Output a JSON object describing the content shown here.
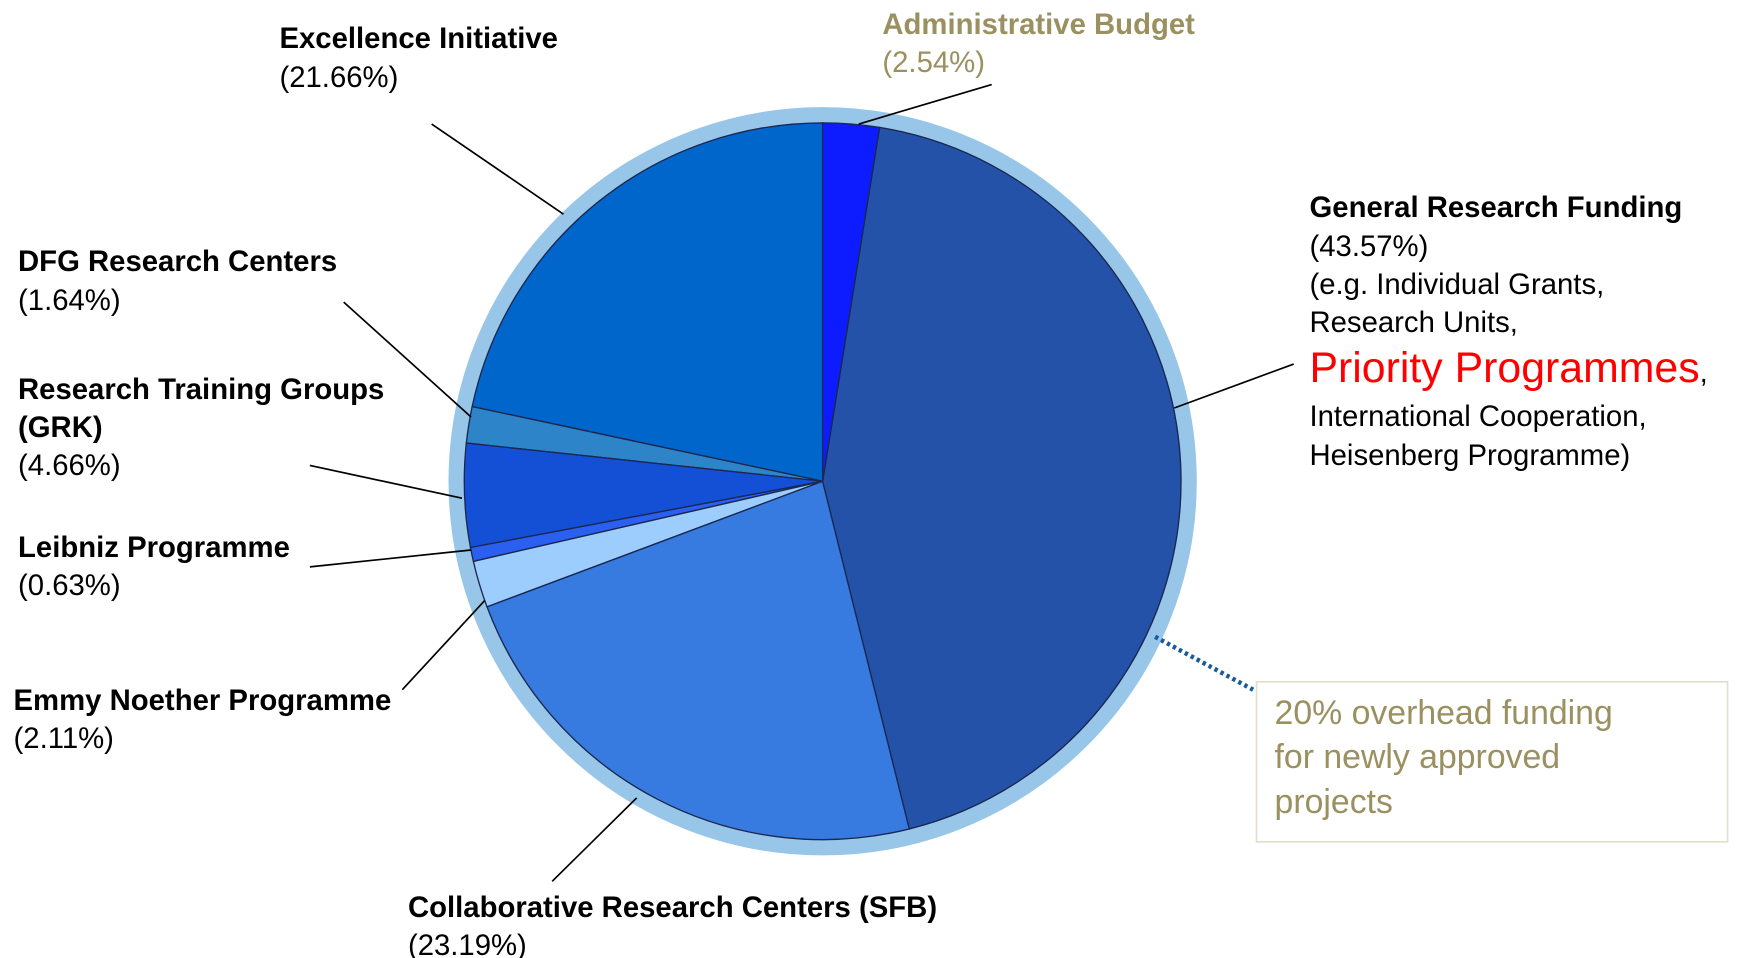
{
  "chart_data": {
    "type": "pie",
    "categories": [
      "Administrative Budget",
      "General Research Funding",
      "Collaborative Research Centers (SFB)",
      "Emmy Noether Programme",
      "Leibniz Programme",
      "Research Training Groups (GRK)",
      "DFG Research Centers",
      "Excellence Initiative"
    ],
    "values": [
      2.54,
      43.57,
      23.19,
      2.11,
      0.63,
      4.66,
      1.64,
      21.66
    ],
    "value_labels": [
      "(2.54%)",
      "(43.57%)",
      "(23.19%)",
      "(2.11%)",
      "(0.63%)",
      "(4.66%)",
      "(1.64%)",
      "(21.66%)"
    ],
    "colors": [
      "#0d1cff",
      "#2452a8",
      "#377ae0",
      "#9dcdfd",
      "#2a5ff0",
      "#1450d6",
      "#2e84c8",
      "#0066cc"
    ],
    "label_colors": [
      "#9a9060",
      "#000000",
      "#000000",
      "#000000",
      "#000000",
      "#000000",
      "#000000",
      "#000000"
    ],
    "ring_color": "#98c6e8",
    "notes": [
      [
        "(e.g. Individual Grants,"
      ],
      [
        "Research Units,"
      ],
      [
        "Priority Programmes",
        ","
      ],
      [
        "International Cooperation,"
      ],
      [
        "Heisenberg Programme)"
      ]
    ],
    "note_highlight_color": "#ff0000",
    "annotation": [
      "20% overhead funding",
      "for newly approved",
      "projects"
    ],
    "annotation_color": "#9a9060"
  }
}
